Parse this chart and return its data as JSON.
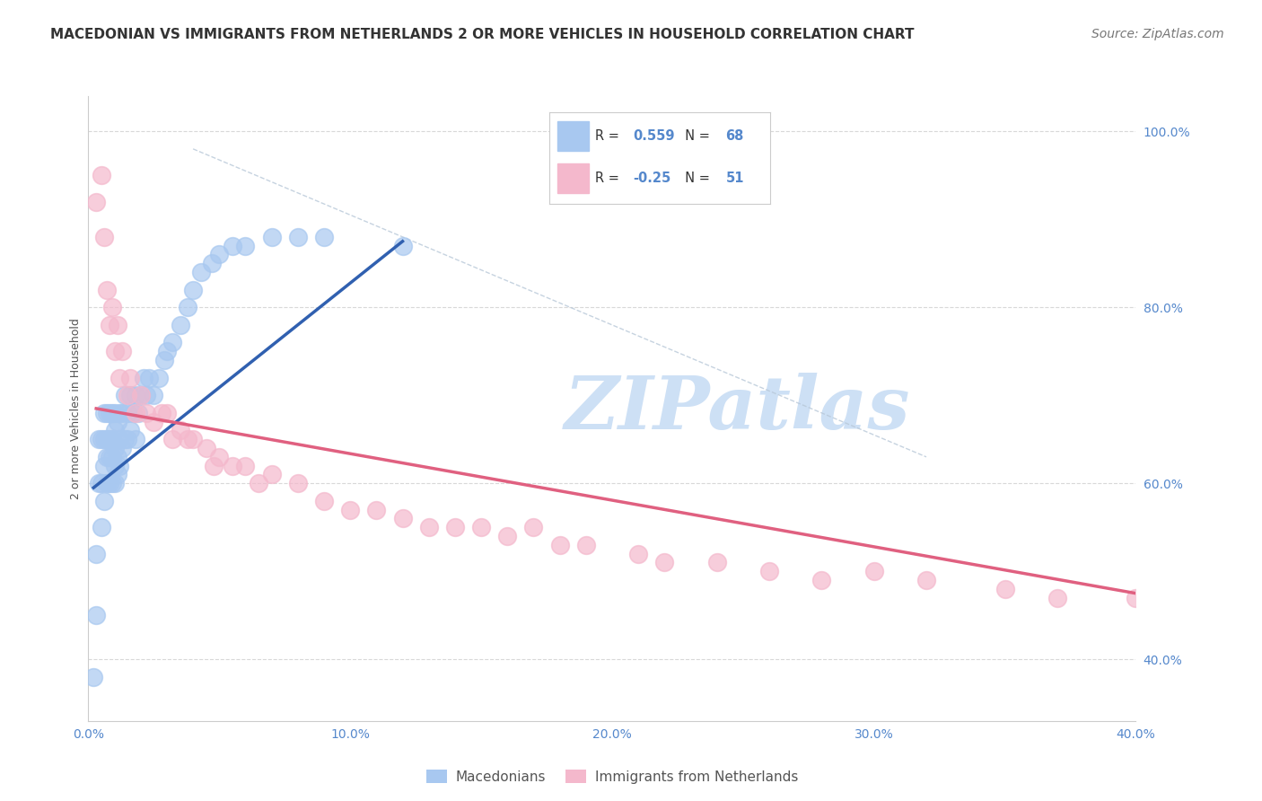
{
  "title": "MACEDONIAN VS IMMIGRANTS FROM NETHERLANDS 2 OR MORE VEHICLES IN HOUSEHOLD CORRELATION CHART",
  "source": "Source: ZipAtlas.com",
  "ylabel": "2 or more Vehicles in Household",
  "xlim": [
    0.0,
    0.4
  ],
  "ylim": [
    0.33,
    1.04
  ],
  "xtick_values": [
    0.0,
    0.1,
    0.2,
    0.3,
    0.4
  ],
  "xtick_labels": [
    "0.0%",
    "10.0%",
    "20.0%",
    "30.0%",
    "40.0%"
  ],
  "ytick_values": [
    0.4,
    0.6,
    0.8,
    1.0
  ],
  "ytick_labels": [
    "40.0%",
    "60.0%",
    "80.0%",
    "100.0%"
  ],
  "macedonian_color": "#a8c8f0",
  "netherlands_color": "#f4b8cc",
  "macedonian_R": 0.559,
  "macedonian_N": 68,
  "netherlands_R": -0.25,
  "netherlands_N": 51,
  "watermark": "ZIPatlas",
  "watermark_color": "#cde0f5",
  "macedonian_label": "Macedonians",
  "netherlands_label": "Immigrants from Netherlands",
  "macedonian_line_color": "#3060b0",
  "netherlands_line_color": "#e06080",
  "diagonal_line_color": "#b8c8d8",
  "background_color": "#ffffff",
  "grid_color": "#d8d8d8",
  "title_fontsize": 11,
  "axis_label_fontsize": 9,
  "tick_fontsize": 10,
  "source_fontsize": 10,
  "mac_x": [
    0.002,
    0.003,
    0.003,
    0.004,
    0.004,
    0.005,
    0.005,
    0.005,
    0.006,
    0.006,
    0.006,
    0.006,
    0.007,
    0.007,
    0.007,
    0.007,
    0.008,
    0.008,
    0.008,
    0.008,
    0.009,
    0.009,
    0.009,
    0.009,
    0.01,
    0.01,
    0.01,
    0.01,
    0.01,
    0.011,
    0.011,
    0.011,
    0.012,
    0.012,
    0.012,
    0.013,
    0.013,
    0.014,
    0.014,
    0.015,
    0.015,
    0.016,
    0.016,
    0.017,
    0.018,
    0.018,
    0.019,
    0.02,
    0.021,
    0.022,
    0.023,
    0.025,
    0.027,
    0.029,
    0.03,
    0.032,
    0.035,
    0.038,
    0.04,
    0.043,
    0.047,
    0.05,
    0.055,
    0.06,
    0.07,
    0.08,
    0.09,
    0.12
  ],
  "mac_y": [
    0.38,
    0.45,
    0.52,
    0.6,
    0.65,
    0.55,
    0.6,
    0.65,
    0.58,
    0.62,
    0.65,
    0.68,
    0.6,
    0.63,
    0.65,
    0.68,
    0.6,
    0.63,
    0.65,
    0.68,
    0.6,
    0.63,
    0.65,
    0.68,
    0.6,
    0.62,
    0.64,
    0.66,
    0.68,
    0.61,
    0.63,
    0.67,
    0.62,
    0.65,
    0.68,
    0.64,
    0.68,
    0.65,
    0.7,
    0.65,
    0.68,
    0.66,
    0.7,
    0.68,
    0.65,
    0.7,
    0.68,
    0.7,
    0.72,
    0.7,
    0.72,
    0.7,
    0.72,
    0.74,
    0.75,
    0.76,
    0.78,
    0.8,
    0.82,
    0.84,
    0.85,
    0.86,
    0.87,
    0.87,
    0.88,
    0.88,
    0.88,
    0.87
  ],
  "neth_x": [
    0.003,
    0.005,
    0.006,
    0.007,
    0.008,
    0.009,
    0.01,
    0.011,
    0.012,
    0.013,
    0.015,
    0.016,
    0.018,
    0.02,
    0.022,
    0.025,
    0.028,
    0.03,
    0.032,
    0.035,
    0.038,
    0.04,
    0.045,
    0.048,
    0.05,
    0.055,
    0.06,
    0.065,
    0.07,
    0.08,
    0.09,
    0.1,
    0.11,
    0.12,
    0.13,
    0.14,
    0.15,
    0.16,
    0.17,
    0.18,
    0.19,
    0.21,
    0.22,
    0.24,
    0.26,
    0.28,
    0.3,
    0.32,
    0.35,
    0.37,
    0.4
  ],
  "neth_y": [
    0.92,
    0.95,
    0.88,
    0.82,
    0.78,
    0.8,
    0.75,
    0.78,
    0.72,
    0.75,
    0.7,
    0.72,
    0.68,
    0.7,
    0.68,
    0.67,
    0.68,
    0.68,
    0.65,
    0.66,
    0.65,
    0.65,
    0.64,
    0.62,
    0.63,
    0.62,
    0.62,
    0.6,
    0.61,
    0.6,
    0.58,
    0.57,
    0.57,
    0.56,
    0.55,
    0.55,
    0.55,
    0.54,
    0.55,
    0.53,
    0.53,
    0.52,
    0.51,
    0.51,
    0.5,
    0.49,
    0.5,
    0.49,
    0.48,
    0.47,
    0.47
  ],
  "mac_line_x": [
    0.002,
    0.12
  ],
  "mac_line_y": [
    0.595,
    0.875
  ],
  "neth_line_x": [
    0.003,
    0.4
  ],
  "neth_line_y": [
    0.685,
    0.475
  ],
  "diag_line_x": [
    0.04,
    0.32
  ],
  "diag_line_y": [
    0.98,
    0.63
  ]
}
